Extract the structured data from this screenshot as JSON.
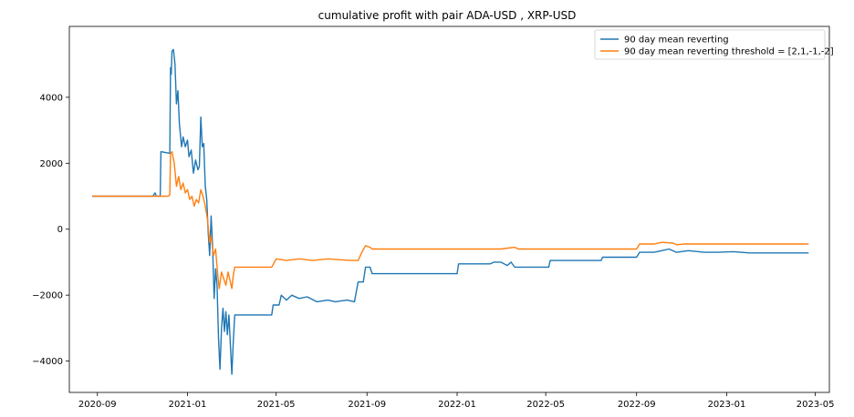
{
  "chart_data": {
    "type": "line",
    "title": "cumulative profit with pair ADA-USD , XRP-USD",
    "xlabel": "",
    "ylabel": "",
    "xlim": [
      "2020-07-25",
      "2023-05-20"
    ],
    "ylim": [
      -4950,
      6150
    ],
    "x_ticks": [
      "2020-09",
      "2021-01",
      "2021-05",
      "2021-09",
      "2022-01",
      "2022-05",
      "2022-09",
      "2023-01",
      "2023-05"
    ],
    "y_ticks": [
      -4000,
      -2000,
      0,
      2000,
      4000
    ],
    "grid": false,
    "legend": "top-right",
    "series": [
      {
        "name": "90 day mean reverting",
        "color": "#1f77b4",
        "points": [
          [
            "2020-08-25",
            1000
          ],
          [
            "2020-11-15",
            1000
          ],
          [
            "2020-11-18",
            1100
          ],
          [
            "2020-11-20",
            1000
          ],
          [
            "2020-11-25",
            1000
          ],
          [
            "2020-11-26",
            2350
          ],
          [
            "2020-12-08",
            2300
          ],
          [
            "2020-12-09",
            4900
          ],
          [
            "2020-12-10",
            4700
          ],
          [
            "2020-12-11",
            5400
          ],
          [
            "2020-12-13",
            5450
          ],
          [
            "2020-12-15",
            5000
          ],
          [
            "2020-12-17",
            3800
          ],
          [
            "2020-12-19",
            4200
          ],
          [
            "2020-12-21",
            3200
          ],
          [
            "2020-12-24",
            2500
          ],
          [
            "2020-12-26",
            2800
          ],
          [
            "2020-12-29",
            2500
          ],
          [
            "2021-01-01",
            2700
          ],
          [
            "2021-01-03",
            2200
          ],
          [
            "2021-01-06",
            2400
          ],
          [
            "2021-01-09",
            1700
          ],
          [
            "2021-01-12",
            2100
          ],
          [
            "2021-01-15",
            1800
          ],
          [
            "2021-01-17",
            1900
          ],
          [
            "2021-01-19",
            3400
          ],
          [
            "2021-01-21",
            2500
          ],
          [
            "2021-01-23",
            2600
          ],
          [
            "2021-01-25",
            1300
          ],
          [
            "2021-01-27",
            900
          ],
          [
            "2021-01-29",
            -100
          ],
          [
            "2021-01-31",
            -800
          ],
          [
            "2021-02-02",
            400
          ],
          [
            "2021-02-04",
            -500
          ],
          [
            "2021-02-06",
            -2100
          ],
          [
            "2021-02-08",
            -1200
          ],
          [
            "2021-02-10",
            -1700
          ],
          [
            "2021-02-12",
            -3300
          ],
          [
            "2021-02-14",
            -4250
          ],
          [
            "2021-02-16",
            -3000
          ],
          [
            "2021-02-18",
            -2400
          ],
          [
            "2021-02-20",
            -3100
          ],
          [
            "2021-02-22",
            -2500
          ],
          [
            "2021-02-24",
            -3200
          ],
          [
            "2021-02-26",
            -2600
          ],
          [
            "2021-02-28",
            -3500
          ],
          [
            "2021-03-02",
            -4400
          ],
          [
            "2021-03-04",
            -3400
          ],
          [
            "2021-03-06",
            -2600
          ],
          [
            "2021-04-25",
            -2600
          ],
          [
            "2021-04-27",
            -2300
          ],
          [
            "2021-05-05",
            -2300
          ],
          [
            "2021-05-08",
            -2000
          ],
          [
            "2021-05-15",
            -2150
          ],
          [
            "2021-05-22",
            -2000
          ],
          [
            "2021-06-01",
            -2100
          ],
          [
            "2021-06-12",
            -2050
          ],
          [
            "2021-06-25",
            -2200
          ],
          [
            "2021-07-10",
            -2150
          ],
          [
            "2021-07-20",
            -2200
          ],
          [
            "2021-08-05",
            -2150
          ],
          [
            "2021-08-15",
            -2200
          ],
          [
            "2021-08-20",
            -1600
          ],
          [
            "2021-08-27",
            -1600
          ],
          [
            "2021-08-30",
            -1150
          ],
          [
            "2021-09-05",
            -1150
          ],
          [
            "2021-09-08",
            -1350
          ],
          [
            "2022-01-01",
            -1350
          ],
          [
            "2022-01-03",
            -1050
          ],
          [
            "2022-02-15",
            -1050
          ],
          [
            "2022-02-20",
            -1000
          ],
          [
            "2022-03-01",
            -1000
          ],
          [
            "2022-03-10",
            -1100
          ],
          [
            "2022-03-15",
            -1000
          ],
          [
            "2022-03-20",
            -1150
          ],
          [
            "2022-05-05",
            -1150
          ],
          [
            "2022-05-07",
            -950
          ],
          [
            "2022-07-15",
            -950
          ],
          [
            "2022-07-17",
            -850
          ],
          [
            "2022-08-25",
            -850
          ],
          [
            "2022-09-01",
            -850
          ],
          [
            "2022-09-05",
            -700
          ],
          [
            "2022-09-25",
            -700
          ],
          [
            "2022-10-05",
            -650
          ],
          [
            "2022-10-15",
            -600
          ],
          [
            "2022-10-25",
            -700
          ],
          [
            "2022-11-10",
            -650
          ],
          [
            "2022-12-01",
            -700
          ],
          [
            "2022-12-20",
            -700
          ],
          [
            "2023-01-10",
            -680
          ],
          [
            "2023-02-01",
            -720
          ],
          [
            "2023-03-01",
            -720
          ],
          [
            "2023-04-22",
            -720
          ]
        ]
      },
      {
        "name": "90 day mean reverting threshold = [2,1,-1,-2]",
        "color": "#ff7f0e",
        "points": [
          [
            "2020-08-25",
            1000
          ],
          [
            "2020-11-24",
            1000
          ],
          [
            "2020-12-06",
            1000
          ],
          [
            "2020-12-08",
            1050
          ],
          [
            "2020-12-09",
            2300
          ],
          [
            "2020-12-11",
            2350
          ],
          [
            "2020-12-14",
            2000
          ],
          [
            "2020-12-17",
            1300
          ],
          [
            "2020-12-20",
            1600
          ],
          [
            "2020-12-23",
            1200
          ],
          [
            "2020-12-26",
            1400
          ],
          [
            "2020-12-29",
            1100
          ],
          [
            "2021-01-01",
            1200
          ],
          [
            "2021-01-04",
            900
          ],
          [
            "2021-01-07",
            1000
          ],
          [
            "2021-01-10",
            700
          ],
          [
            "2021-01-13",
            900
          ],
          [
            "2021-01-16",
            800
          ],
          [
            "2021-01-19",
            1200
          ],
          [
            "2021-01-22",
            1000
          ],
          [
            "2021-01-25",
            700
          ],
          [
            "2021-01-28",
            300
          ],
          [
            "2021-01-31",
            -400
          ],
          [
            "2021-02-02",
            -200
          ],
          [
            "2021-02-05",
            -800
          ],
          [
            "2021-02-08",
            -600
          ],
          [
            "2021-02-11",
            -1400
          ],
          [
            "2021-02-13",
            -1800
          ],
          [
            "2021-02-16",
            -1300
          ],
          [
            "2021-02-19",
            -1500
          ],
          [
            "2021-02-22",
            -1700
          ],
          [
            "2021-02-25",
            -1300
          ],
          [
            "2021-02-28",
            -1600
          ],
          [
            "2021-03-02",
            -1800
          ],
          [
            "2021-03-04",
            -1400
          ],
          [
            "2021-03-06",
            -1150
          ],
          [
            "2021-04-25",
            -1150
          ],
          [
            "2021-05-01",
            -900
          ],
          [
            "2021-05-15",
            -950
          ],
          [
            "2021-06-01",
            -900
          ],
          [
            "2021-06-20",
            -950
          ],
          [
            "2021-07-10",
            -900
          ],
          [
            "2021-08-10",
            -950
          ],
          [
            "2021-08-20",
            -950
          ],
          [
            "2021-08-25",
            -700
          ],
          [
            "2021-08-30",
            -500
          ],
          [
            "2021-09-05",
            -550
          ],
          [
            "2021-09-08",
            -600
          ],
          [
            "2022-03-01",
            -600
          ],
          [
            "2022-03-20",
            -550
          ],
          [
            "2022-03-25",
            -600
          ],
          [
            "2022-09-01",
            -600
          ],
          [
            "2022-09-05",
            -450
          ],
          [
            "2022-09-25",
            -450
          ],
          [
            "2022-10-05",
            -400
          ],
          [
            "2022-10-20",
            -420
          ],
          [
            "2022-10-25",
            -470
          ],
          [
            "2022-11-05",
            -450
          ],
          [
            "2023-04-22",
            -450
          ]
        ]
      }
    ]
  }
}
